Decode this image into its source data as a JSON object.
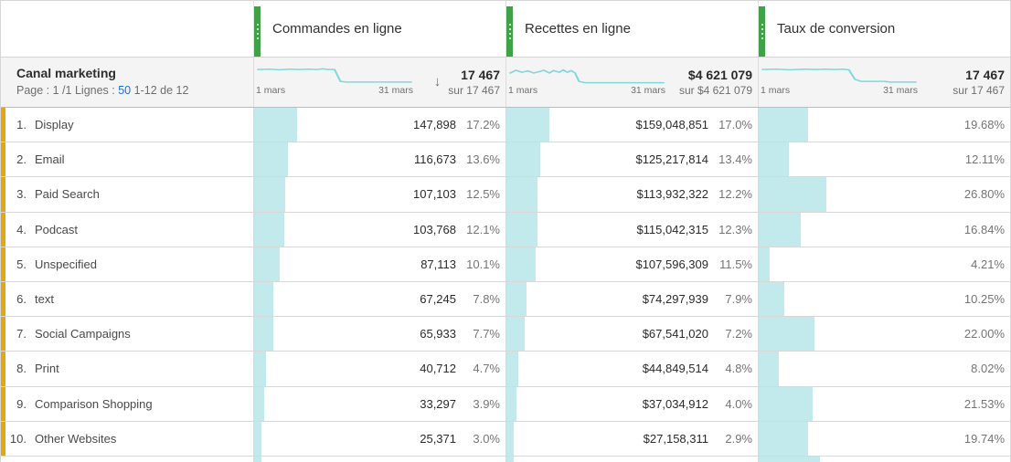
{
  "colors": {
    "accent_green": "#3fa246",
    "bar_fill": "#c2e9ec",
    "sparkline": "#7ed8de",
    "row_marker_yellow": "#e3a712",
    "link_blue": "#1473e6",
    "text_dark": "#2b2b2b",
    "text_gray": "#6e6e6e"
  },
  "icons": {
    "sort_desc": "↓",
    "drag_handle": "grip-dots"
  },
  "table": {
    "dimension": {
      "title": "Canal marketing"
    },
    "pagination": {
      "page_label": "Page :",
      "page_value": "1 /1",
      "rows_label": "Lignes :",
      "rows_value": "50",
      "range": "1-12 de 12"
    },
    "columns": [
      {
        "id": "orders",
        "label": "Commandes en ligne",
        "date_start": "1 mars",
        "date_end": "31 mars",
        "total": "17 467",
        "total_sub": "sur 17 467",
        "sorted_desc": true,
        "spark": "2,8 14,7.5 24,8.5 34,7.5 44,8 54,7.5 62,8 68,7 74,8 80,8 86,25 92,26 158,26"
      },
      {
        "id": "revenue",
        "label": "Recettes en ligne",
        "date_start": "1 mars",
        "date_end": "31 mars",
        "total": "$4 621 079",
        "total_sub": "sur $4 621 079",
        "sorted_desc": false,
        "spark": "2,13 8,9 14,12 20,10 26,13 32,11 36,9 42,13 46,9.5 52,12 56,8.5 60,12 64,9.5 68,13 72,25 78,27 158,27"
      },
      {
        "id": "conversion",
        "label": "Taux de conversion",
        "date_start": "1 mars",
        "date_end": "31 mars",
        "total": "17 467",
        "total_sub": "sur 17 467",
        "sorted_desc": false,
        "spark": "2,8 16,7.5 30,8.5 44,7.5 56,8 66,7.5 76,8 84,7.5 90,8.5 96,22 102,25 126,25 132,26 158,26"
      }
    ],
    "rows": [
      {
        "rank": "1.",
        "label": "Display",
        "orders": "147,898",
        "orders_pct": "17.2%",
        "revenue": "$159,048,851",
        "revenue_pct": "17.0%",
        "conversion": "19.68%",
        "bars": {
          "orders": 17.2,
          "revenue": 17.0,
          "conversion": 19.68
        }
      },
      {
        "rank": "2.",
        "label": "Email",
        "orders": "116,673",
        "orders_pct": "13.6%",
        "revenue": "$125,217,814",
        "revenue_pct": "13.4%",
        "conversion": "12.11%",
        "bars": {
          "orders": 13.6,
          "revenue": 13.4,
          "conversion": 12.11
        }
      },
      {
        "rank": "3.",
        "label": "Paid Search",
        "orders": "107,103",
        "orders_pct": "12.5%",
        "revenue": "$113,932,322",
        "revenue_pct": "12.2%",
        "conversion": "26.80%",
        "bars": {
          "orders": 12.5,
          "revenue": 12.2,
          "conversion": 26.8
        }
      },
      {
        "rank": "4.",
        "label": "Podcast",
        "orders": "103,768",
        "orders_pct": "12.1%",
        "revenue": "$115,042,315",
        "revenue_pct": "12.3%",
        "conversion": "16.84%",
        "bars": {
          "orders": 12.1,
          "revenue": 12.3,
          "conversion": 16.84
        }
      },
      {
        "rank": "5.",
        "label": "Unspecified",
        "orders": "87,113",
        "orders_pct": "10.1%",
        "revenue": "$107,596,309",
        "revenue_pct": "11.5%",
        "conversion": "4.21%",
        "bars": {
          "orders": 10.1,
          "revenue": 11.5,
          "conversion": 4.21
        }
      },
      {
        "rank": "6.",
        "label": "text",
        "orders": "67,245",
        "orders_pct": "7.8%",
        "revenue": "$74,297,939",
        "revenue_pct": "7.9%",
        "conversion": "10.25%",
        "bars": {
          "orders": 7.8,
          "revenue": 7.9,
          "conversion": 10.25
        }
      },
      {
        "rank": "7.",
        "label": "Social Campaigns",
        "orders": "65,933",
        "orders_pct": "7.7%",
        "revenue": "$67,541,020",
        "revenue_pct": "7.2%",
        "conversion": "22.00%",
        "bars": {
          "orders": 7.7,
          "revenue": 7.2,
          "conversion": 22.0
        }
      },
      {
        "rank": "8.",
        "label": "Print",
        "orders": "40,712",
        "orders_pct": "4.7%",
        "revenue": "$44,849,514",
        "revenue_pct": "4.8%",
        "conversion": "8.02%",
        "bars": {
          "orders": 4.7,
          "revenue": 4.8,
          "conversion": 8.02
        }
      },
      {
        "rank": "9.",
        "label": "Comparison Shopping",
        "orders": "33,297",
        "orders_pct": "3.9%",
        "revenue": "$37,034,912",
        "revenue_pct": "4.0%",
        "conversion": "21.53%",
        "bars": {
          "orders": 3.9,
          "revenue": 4.0,
          "conversion": 21.53
        }
      },
      {
        "rank": "10.",
        "label": "Other Websites",
        "orders": "25,371",
        "orders_pct": "3.0%",
        "revenue": "$27,158,311",
        "revenue_pct": "2.9%",
        "conversion": "19.74%",
        "bars": {
          "orders": 3.0,
          "revenue": 2.9,
          "conversion": 19.74
        }
      }
    ],
    "partial_row_bars": {
      "orders": 3.0,
      "revenue": 2.8,
      "conversion": 24.5
    }
  }
}
